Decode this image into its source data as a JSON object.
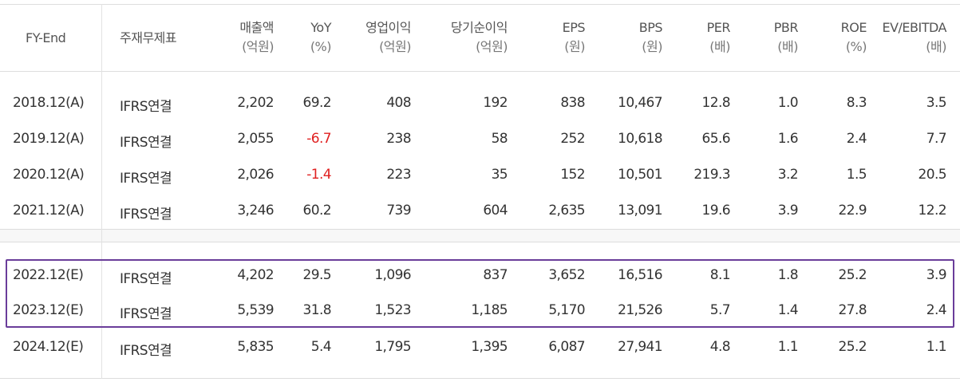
{
  "headers": [
    {
      "label": "FY-End",
      "unit": ""
    },
    {
      "label": "주재무제표",
      "unit": ""
    },
    {
      "label": "매출액",
      "unit": "(억원)"
    },
    {
      "label": "YoY",
      "unit": "(%)"
    },
    {
      "label": "영업이익",
      "unit": "(억원)"
    },
    {
      "label": "당기순이익",
      "unit": "(억원)"
    },
    {
      "label": "EPS",
      "unit": "(원)"
    },
    {
      "label": "BPS",
      "unit": "(원)"
    },
    {
      "label": "PER",
      "unit": "(배)"
    },
    {
      "label": "PBR",
      "unit": "(배)"
    },
    {
      "label": "ROE",
      "unit": "(%)"
    },
    {
      "label": "EV/EBITDA",
      "unit": "(배)"
    }
  ],
  "rows": [
    {
      "fy": "2018.12(A)",
      "basis": "IFRS연결",
      "sales": "2,202",
      "yoy": "69.2",
      "op": "408",
      "net": "192",
      "eps": "838",
      "bps": "10,467",
      "per": "12.8",
      "pbr": "1.0",
      "roe": "8.3",
      "ev": "3.5"
    },
    {
      "fy": "2019.12(A)",
      "basis": "IFRS연결",
      "sales": "2,055",
      "yoy": "-6.7",
      "op": "238",
      "net": "58",
      "eps": "252",
      "bps": "10,618",
      "per": "65.6",
      "pbr": "1.6",
      "roe": "2.4",
      "ev": "7.7"
    },
    {
      "fy": "2020.12(A)",
      "basis": "IFRS연결",
      "sales": "2,026",
      "yoy": "-1.4",
      "op": "223",
      "net": "35",
      "eps": "152",
      "bps": "10,501",
      "per": "219.3",
      "pbr": "3.2",
      "roe": "1.5",
      "ev": "20.5"
    },
    {
      "fy": "2021.12(A)",
      "basis": "IFRS연결",
      "sales": "3,246",
      "yoy": "60.2",
      "op": "739",
      "net": "604",
      "eps": "2,635",
      "bps": "13,091",
      "per": "19.6",
      "pbr": "3.9",
      "roe": "22.9",
      "ev": "12.2"
    },
    {
      "fy": "2022.12(E)",
      "basis": "IFRS연결",
      "sales": "4,202",
      "yoy": "29.5",
      "op": "1,096",
      "net": "837",
      "eps": "3,652",
      "bps": "16,516",
      "per": "8.1",
      "pbr": "1.8",
      "roe": "25.2",
      "ev": "3.9"
    },
    {
      "fy": "2023.12(E)",
      "basis": "IFRS연결",
      "sales": "5,539",
      "yoy": "31.8",
      "op": "1,523",
      "net": "1,185",
      "eps": "5,170",
      "bps": "21,526",
      "per": "5.7",
      "pbr": "1.4",
      "roe": "27.8",
      "ev": "2.4"
    },
    {
      "fy": "2024.12(E)",
      "basis": "IFRS연결",
      "sales": "5,835",
      "yoy": "5.4",
      "op": "1,795",
      "net": "1,395",
      "eps": "6,087",
      "bps": "27,941",
      "per": "4.8",
      "pbr": "1.1",
      "roe": "25.2",
      "ev": "1.1"
    }
  ],
  "colors": {
    "negative": "#e02020",
    "highlight_border": "#6a3d9a"
  }
}
